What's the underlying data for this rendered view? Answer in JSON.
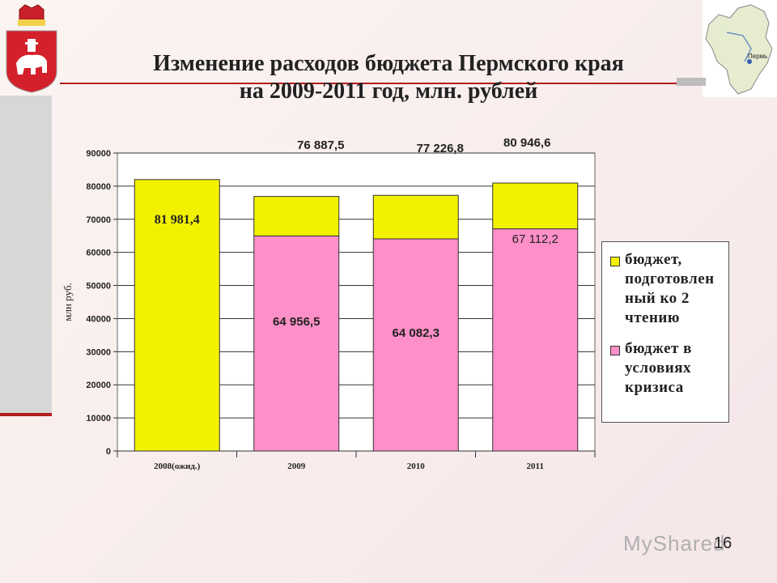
{
  "title": {
    "line1": "Изменение расходов бюджета Пермского края",
    "line2": "на 2009-2011 год, млн. рублей"
  },
  "page_number": "16",
  "watermark": "MyShared",
  "chart_data": {
    "type": "bar",
    "stacked": true,
    "categories": [
      "2008(ожид.)",
      "2009",
      "2010",
      "2011"
    ],
    "ylabel": "млн руб.",
    "ylim": [
      0,
      90000
    ],
    "yticks": [
      "0",
      "10000",
      "20000",
      "30000",
      "40000",
      "50000",
      "60000",
      "70000",
      "80000",
      "90000"
    ],
    "grid": true,
    "legend_position": "right",
    "series": [
      {
        "name": "бюджет в условиях кризиса",
        "color": "#ff8fc8",
        "values": [
          0,
          64956.5,
          64082.3,
          67112.2
        ],
        "labels": [
          "",
          "64 956,5",
          "64 082,3",
          "67 112,2"
        ]
      },
      {
        "name": "бюджет, подготовленный ко 2 чтению",
        "color": "#f2f200",
        "values": [
          81981.4,
          11931.0,
          13144.5,
          13834.4
        ],
        "labels": [
          "81 981,4",
          "",
          "",
          ""
        ]
      }
    ],
    "totals": [
      "",
      "76 887,5",
      "77 226,8",
      "80 946,6"
    ],
    "legend": [
      {
        "text": "бюджет, подготовлен ный ко 2 чтению",
        "color": "#f2f200"
      },
      {
        "text": "бюджет в условиях кризиса",
        "color": "#ff8fc8"
      }
    ]
  }
}
